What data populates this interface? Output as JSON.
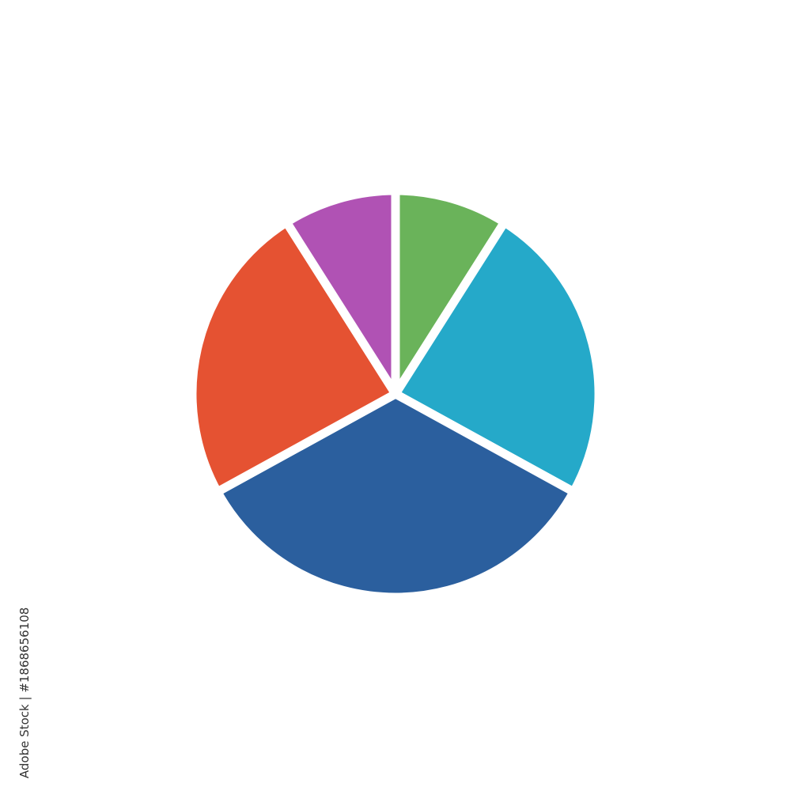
{
  "chart_data": {
    "type": "pie",
    "title": "",
    "start": "top",
    "direction": "clockwise",
    "slices": [
      {
        "value": 9,
        "color": "#6ab35a"
      },
      {
        "value": 24,
        "color": "#25a9c9"
      },
      {
        "value": 34,
        "color": "#2b5f9e"
      },
      {
        "value": 24,
        "color": "#e55232"
      },
      {
        "value": 9,
        "color": "#b052b4"
      }
    ],
    "legend": "none",
    "separator_color": "#ffffff"
  },
  "watermark": {
    "text": "Adobe Stock",
    "credit": "Adobe Stock | #1868656108"
  }
}
